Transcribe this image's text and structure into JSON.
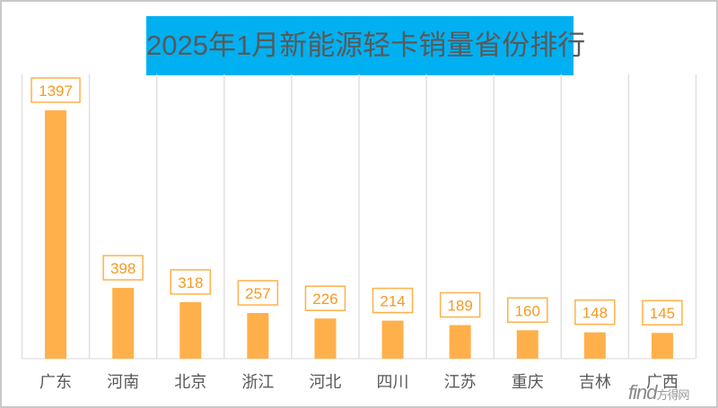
{
  "chart_data": {
    "type": "bar",
    "title": "2025年1月新能源轻卡销量省份排行",
    "categories": [
      "广东",
      "河南",
      "北京",
      "浙江",
      "河北",
      "四川",
      "江苏",
      "重庆",
      "吉林",
      "广西"
    ],
    "values": [
      1397,
      398,
      318,
      257,
      226,
      214,
      189,
      160,
      148,
      145
    ],
    "xlabel": "",
    "ylabel": "",
    "ylim": [
      0,
      1397
    ],
    "grid": "vertical",
    "bar_color": "#FFB04A",
    "label_color": "#F59A23",
    "title_bg": "#00B0F0"
  },
  "watermark": {
    "latin": "find",
    "cjk": "方得网"
  }
}
